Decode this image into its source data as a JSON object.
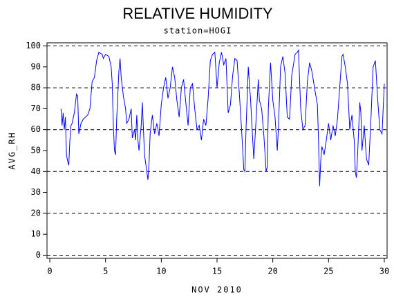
{
  "chart_data": {
    "type": "line",
    "title": "RELATIVE HUMIDITY",
    "subtitle": "station=HOGI",
    "x_label": "NOV 2010",
    "y_label": "AVG_RH",
    "xlim": [
      -0.25,
      30.25
    ],
    "ylim": [
      -1.5,
      101.5
    ],
    "xticks": [
      0,
      5,
      10,
      15,
      20,
      25,
      30
    ],
    "yticks": [
      0,
      10,
      20,
      30,
      40,
      50,
      60,
      70,
      80,
      90,
      100
    ],
    "grid_lines": [
      0,
      20,
      40,
      60,
      80,
      100
    ],
    "series": [
      {
        "name": "AVG_RH",
        "color": "#0000ff",
        "x": [
          1.0,
          1.1,
          1.2,
          1.3,
          1.4,
          1.5,
          1.6,
          1.7,
          1.8,
          1.9,
          2.0,
          2.2,
          2.4,
          2.5,
          2.6,
          2.8,
          3.0,
          3.2,
          3.4,
          3.6,
          3.8,
          4.0,
          4.2,
          4.4,
          4.7,
          4.8,
          5.0,
          5.3,
          5.5,
          5.6,
          5.7,
          5.8,
          5.9,
          6.0,
          6.2,
          6.3,
          6.4,
          6.6,
          6.8,
          6.9,
          7.1,
          7.3,
          7.4,
          7.6,
          7.7,
          7.8,
          7.9,
          8.0,
          8.2,
          8.3,
          8.5,
          8.7,
          8.8,
          8.9,
          9.0,
          9.2,
          9.4,
          9.6,
          9.8,
          10.0,
          10.2,
          10.4,
          10.6,
          10.8,
          11.0,
          11.2,
          11.4,
          11.6,
          11.8,
          12.0,
          12.2,
          12.4,
          12.6,
          12.8,
          13.0,
          13.2,
          13.4,
          13.6,
          13.8,
          14.0,
          14.2,
          14.4,
          14.6,
          14.8,
          15.0,
          15.2,
          15.4,
          15.6,
          15.8,
          16.0,
          16.2,
          16.4,
          16.6,
          16.8,
          17.0,
          17.2,
          17.4,
          17.5,
          17.6,
          17.8,
          17.9,
          18.0,
          18.2,
          18.3,
          18.5,
          18.7,
          18.8,
          19.0,
          19.2,
          19.4,
          19.5,
          19.6,
          19.8,
          20.0,
          20.2,
          20.4,
          20.5,
          20.7,
          20.9,
          21.1,
          21.3,
          21.5,
          21.7,
          22.0,
          22.2,
          22.3,
          22.5,
          22.7,
          22.9,
          23.1,
          23.3,
          23.5,
          23.8,
          24.0,
          24.1,
          24.2,
          24.3,
          24.4,
          24.6,
          24.8,
          25.0,
          25.2,
          25.4,
          25.6,
          25.8,
          26.0,
          26.2,
          26.3,
          26.5,
          26.7,
          26.9,
          27.1,
          27.3,
          27.4,
          27.5,
          27.6,
          27.8,
          27.9,
          28.0,
          28.2,
          28.4,
          28.6,
          28.8,
          29.0,
          29.2,
          29.4,
          29.6,
          29.8,
          30.0
        ],
        "values": [
          70,
          62,
          68,
          60,
          66,
          48,
          45,
          43,
          55,
          62,
          63,
          68,
          77,
          76,
          58,
          63,
          65,
          66,
          67,
          70,
          83,
          85,
          93,
          97,
          96,
          94,
          96,
          95,
          90,
          82,
          62,
          50,
          48,
          65,
          88,
          94,
          85,
          76,
          70,
          63,
          65,
          70,
          56,
          60,
          55,
          67,
          55,
          50,
          62,
          73,
          48,
          40,
          36,
          44,
          58,
          67,
          58,
          63,
          57,
          72,
          80,
          85,
          75,
          80,
          90,
          85,
          74,
          66,
          80,
          84,
          73,
          62,
          80,
          82,
          70,
          60,
          62,
          55,
          65,
          62,
          75,
          93,
          96,
          97,
          80,
          92,
          97,
          91,
          94,
          68,
          72,
          86,
          94,
          93,
          77,
          60,
          41,
          40,
          60,
          90,
          82,
          75,
          55,
          46,
          65,
          84,
          74,
          70,
          57,
          40,
          42,
          70,
          92,
          74,
          66,
          50,
          60,
          90,
          95,
          87,
          66,
          65,
          86,
          96,
          97,
          98,
          70,
          60,
          62,
          83,
          92,
          88,
          78,
          72,
          55,
          33,
          45,
          52,
          48,
          55,
          63,
          55,
          62,
          57,
          65,
          80,
          95,
          96,
          90,
          82,
          60,
          67,
          55,
          40,
          37,
          48,
          73,
          68,
          50,
          62,
          46,
          43,
          65,
          90,
          93,
          75,
          60,
          58,
          82
        ]
      }
    ]
  }
}
